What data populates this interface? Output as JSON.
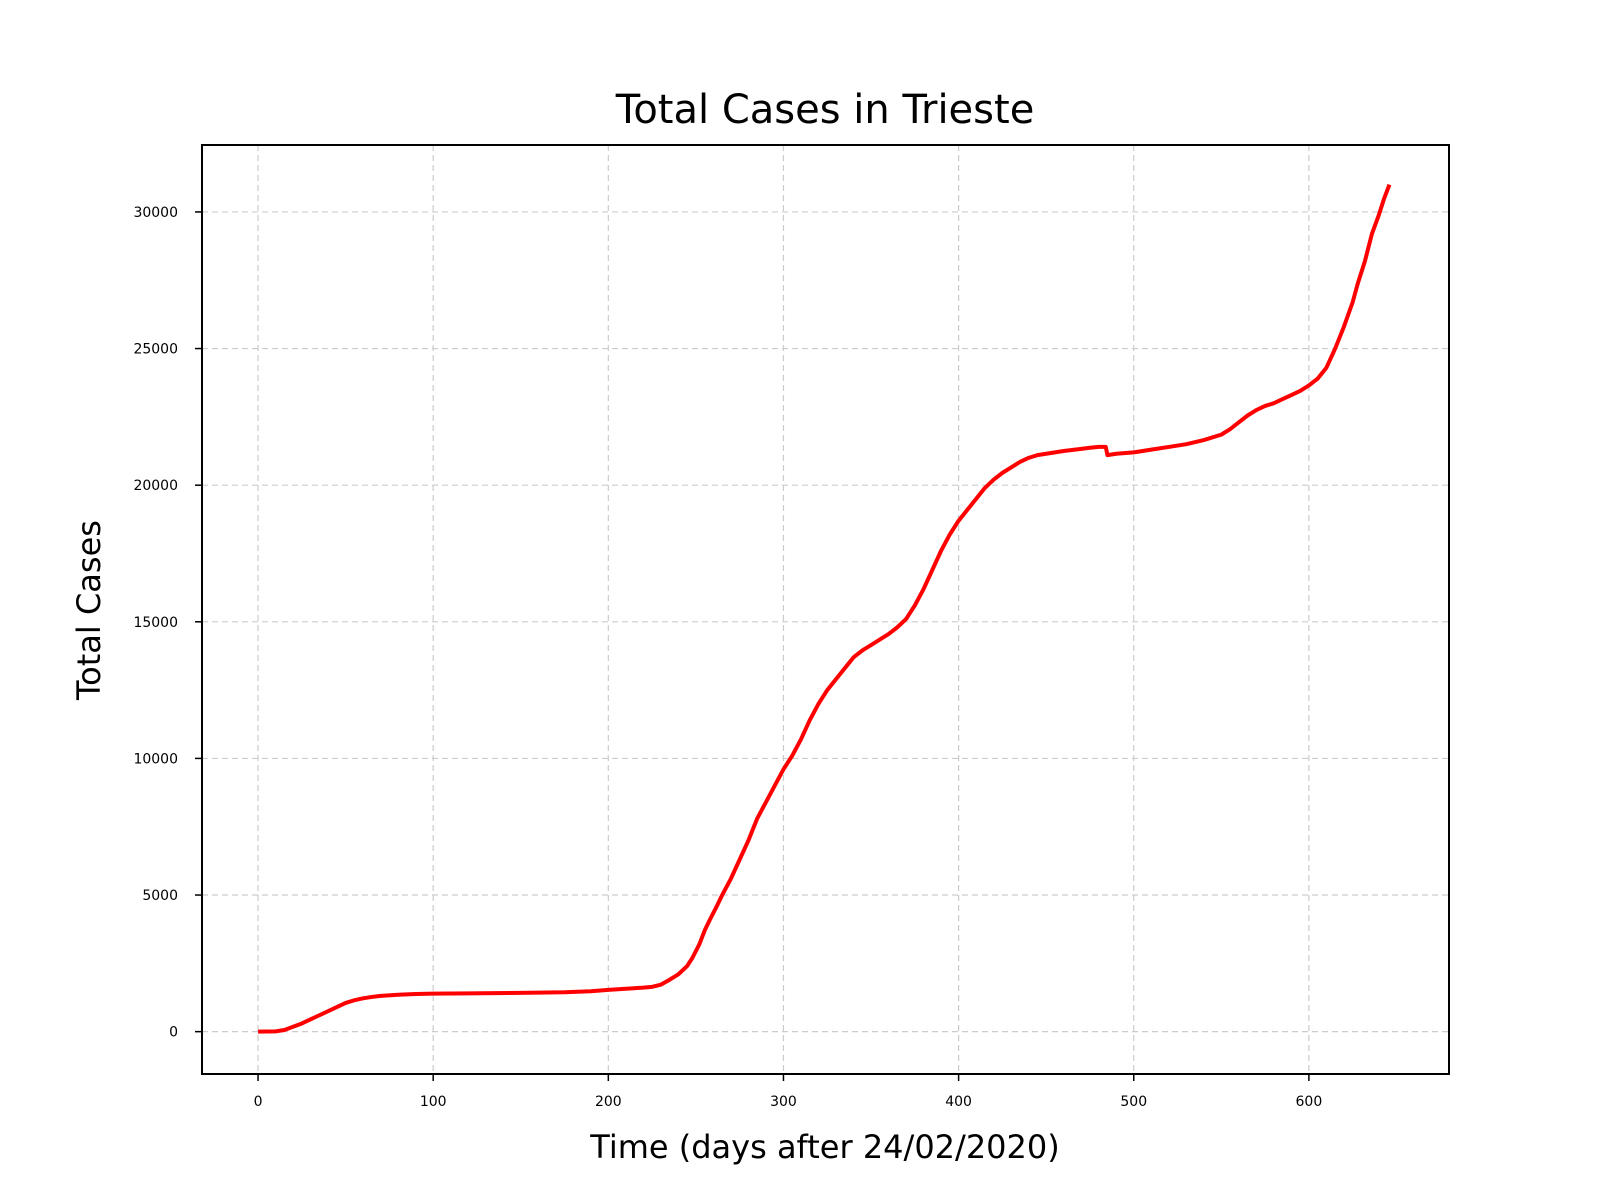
{
  "chart_data": {
    "type": "line",
    "title": "Total Cases in Trieste",
    "xlabel": "Time (days after 24/02/2020)",
    "ylabel": "Total Cases",
    "xlim": [
      -32,
      680
    ],
    "ylim": [
      -1550,
      32450
    ],
    "xticks": [
      0,
      100,
      200,
      300,
      400,
      500,
      600
    ],
    "yticks": [
      0,
      5000,
      10000,
      15000,
      20000,
      25000,
      30000
    ],
    "grid": true,
    "series": [
      {
        "color": "#ff0000",
        "x": [
          0,
          10,
          15,
          20,
          25,
          30,
          35,
          40,
          45,
          50,
          55,
          60,
          65,
          70,
          80,
          90,
          100,
          120,
          150,
          175,
          190,
          200,
          210,
          220,
          225,
          230,
          235,
          240,
          245,
          248,
          252,
          255,
          258,
          262,
          265,
          270,
          275,
          280,
          285,
          290,
          295,
          300,
          305,
          310,
          315,
          320,
          325,
          330,
          335,
          340,
          345,
          350,
          355,
          360,
          365,
          370,
          375,
          380,
          385,
          390,
          395,
          400,
          405,
          410,
          415,
          420,
          425,
          430,
          435,
          440,
          445,
          450,
          460,
          470,
          475,
          480,
          484,
          485,
          490,
          500,
          510,
          520,
          530,
          540,
          550,
          555,
          560,
          565,
          570,
          575,
          580,
          585,
          590,
          595,
          600,
          605,
          610,
          615,
          620,
          625,
          628,
          632,
          636,
          640,
          643,
          646
        ],
        "y": [
          0,
          10,
          60,
          180,
          300,
          450,
          600,
          750,
          900,
          1050,
          1150,
          1220,
          1270,
          1310,
          1350,
          1380,
          1390,
          1400,
          1420,
          1440,
          1480,
          1530,
          1570,
          1610,
          1640,
          1720,
          1900,
          2100,
          2400,
          2700,
          3200,
          3700,
          4100,
          4600,
          5000,
          5600,
          6300,
          7000,
          7800,
          8400,
          9000,
          9600,
          10100,
          10700,
          11400,
          12000,
          12500,
          12900,
          13300,
          13700,
          13950,
          14150,
          14350,
          14550,
          14800,
          15100,
          15600,
          16200,
          16900,
          17600,
          18200,
          18700,
          19100,
          19500,
          19900,
          20200,
          20450,
          20650,
          20850,
          21000,
          21100,
          21150,
          21250,
          21330,
          21370,
          21400,
          21400,
          21100,
          21150,
          21200,
          21300,
          21400,
          21500,
          21650,
          21850,
          22050,
          22300,
          22550,
          22750,
          22900,
          23000,
          23150,
          23300,
          23450,
          23650,
          23900,
          24300,
          25000,
          25800,
          26700,
          27400,
          28200,
          29200,
          29900,
          30500,
          31000
        ]
      }
    ]
  }
}
